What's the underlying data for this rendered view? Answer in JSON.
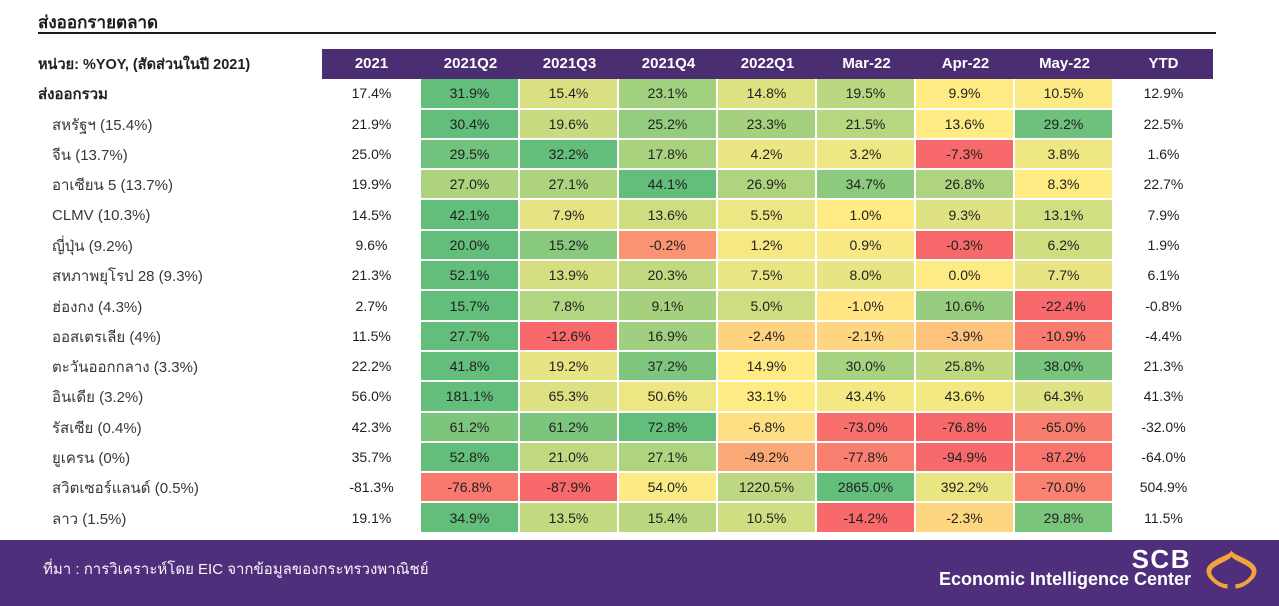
{
  "title": "ส่งออกรายตลาด",
  "unit_label": "หน่วย: %YOY, (สัดส่วนในปี 2021)",
  "source": "ที่มา : การวิเคราะห์โดย EIC จากข้อมูลของกระทรวงพาณิชย์",
  "logo": {
    "brand": "SCB",
    "subtitle": "Economic Intelligence Center"
  },
  "colors": {
    "header_purple": "#4B2D72",
    "footer_purple": "#4F2F7B",
    "scale_red": "#F8696B",
    "scale_yellow": "#FFEB84",
    "scale_green": "#63BE7B",
    "logo_orange": "#F2A33C"
  },
  "chart_data": {
    "type": "heatmap",
    "title": "ส่งออกรายตลาด",
    "unit": "%YOY",
    "columns": [
      "2021",
      "2021Q2",
      "2021Q3",
      "2021Q4",
      "2022Q1",
      "Mar-22",
      "Apr-22",
      "May-22",
      "YTD"
    ],
    "heatmap_column_indices": [
      1,
      2,
      3,
      4,
      5,
      6,
      7
    ],
    "color_scale": {
      "min_color": "#F8696B",
      "mid_color": "#FFEB84",
      "max_color": "#63BE7B",
      "midpoint": 0,
      "scope": "row"
    },
    "value_format": "percent_one_decimal",
    "rows": [
      {
        "label": "ส่งออกรวม",
        "bold": true,
        "values": [
          17.4,
          31.9,
          15.4,
          23.1,
          14.8,
          19.5,
          9.9,
          10.5,
          12.9
        ]
      },
      {
        "label": "สหรัฐฯ (15.4%)",
        "bold": false,
        "values": [
          21.9,
          30.4,
          19.6,
          25.2,
          23.3,
          21.5,
          13.6,
          29.2,
          22.5
        ]
      },
      {
        "label": "จีน (13.7%)",
        "bold": false,
        "values": [
          25.0,
          29.5,
          32.2,
          17.8,
          4.2,
          3.2,
          -7.3,
          3.8,
          1.6
        ]
      },
      {
        "label": "อาเซียน 5 (13.7%)",
        "bold": false,
        "values": [
          19.9,
          27.0,
          27.1,
          44.1,
          26.9,
          34.7,
          26.8,
          8.3,
          22.7
        ]
      },
      {
        "label": "CLMV (10.3%)",
        "bold": false,
        "values": [
          14.5,
          42.1,
          7.9,
          13.6,
          5.5,
          1.0,
          9.3,
          13.1,
          7.9
        ]
      },
      {
        "label": "ญี่ปุ่น (9.2%)",
        "bold": false,
        "values": [
          9.6,
          20.0,
          15.2,
          -0.2,
          1.2,
          0.9,
          -0.3,
          6.2,
          1.9
        ]
      },
      {
        "label": "สหภาพยุโรป 28 (9.3%)",
        "bold": false,
        "values": [
          21.3,
          52.1,
          13.9,
          20.3,
          7.5,
          8.0,
          0.0,
          7.7,
          6.1
        ]
      },
      {
        "label": "ฮ่องกง (4.3%)",
        "bold": false,
        "values": [
          2.7,
          15.7,
          7.8,
          9.1,
          5.0,
          -1.0,
          10.6,
          -22.4,
          -0.8
        ]
      },
      {
        "label": "ออสเตรเลีย (4%)",
        "bold": false,
        "values": [
          11.5,
          27.7,
          -12.6,
          16.9,
          -2.4,
          -2.1,
          -3.9,
          -10.9,
          -4.4
        ]
      },
      {
        "label": "ตะวันออกกลาง (3.3%)",
        "bold": false,
        "values": [
          22.2,
          41.8,
          19.2,
          37.2,
          14.9,
          30.0,
          25.8,
          38.0,
          21.3
        ]
      },
      {
        "label": "อินเดีย (3.2%)",
        "bold": false,
        "values": [
          56.0,
          181.1,
          65.3,
          50.6,
          33.1,
          43.4,
          43.6,
          64.3,
          41.3
        ]
      },
      {
        "label": "รัสเซีย (0.4%)",
        "bold": false,
        "values": [
          42.3,
          61.2,
          61.2,
          72.8,
          -6.8,
          -73.0,
          -76.8,
          -65.0,
          -32.0
        ]
      },
      {
        "label": "ยูเครน (0%)",
        "bold": false,
        "values": [
          35.7,
          52.8,
          21.0,
          27.1,
          -49.2,
          -77.8,
          -94.9,
          -87.2,
          -64.0
        ]
      },
      {
        "label": "สวิตเซอร์แลนด์ (0.5%)",
        "bold": false,
        "values": [
          -81.3,
          -76.8,
          -87.9,
          54.0,
          1220.5,
          2865.0,
          392.2,
          -70.0,
          504.9
        ]
      },
      {
        "label": "ลาว (1.5%)",
        "bold": false,
        "values": [
          19.1,
          34.9,
          13.5,
          15.4,
          10.5,
          -14.2,
          -2.3,
          29.8,
          11.5
        ]
      }
    ]
  }
}
